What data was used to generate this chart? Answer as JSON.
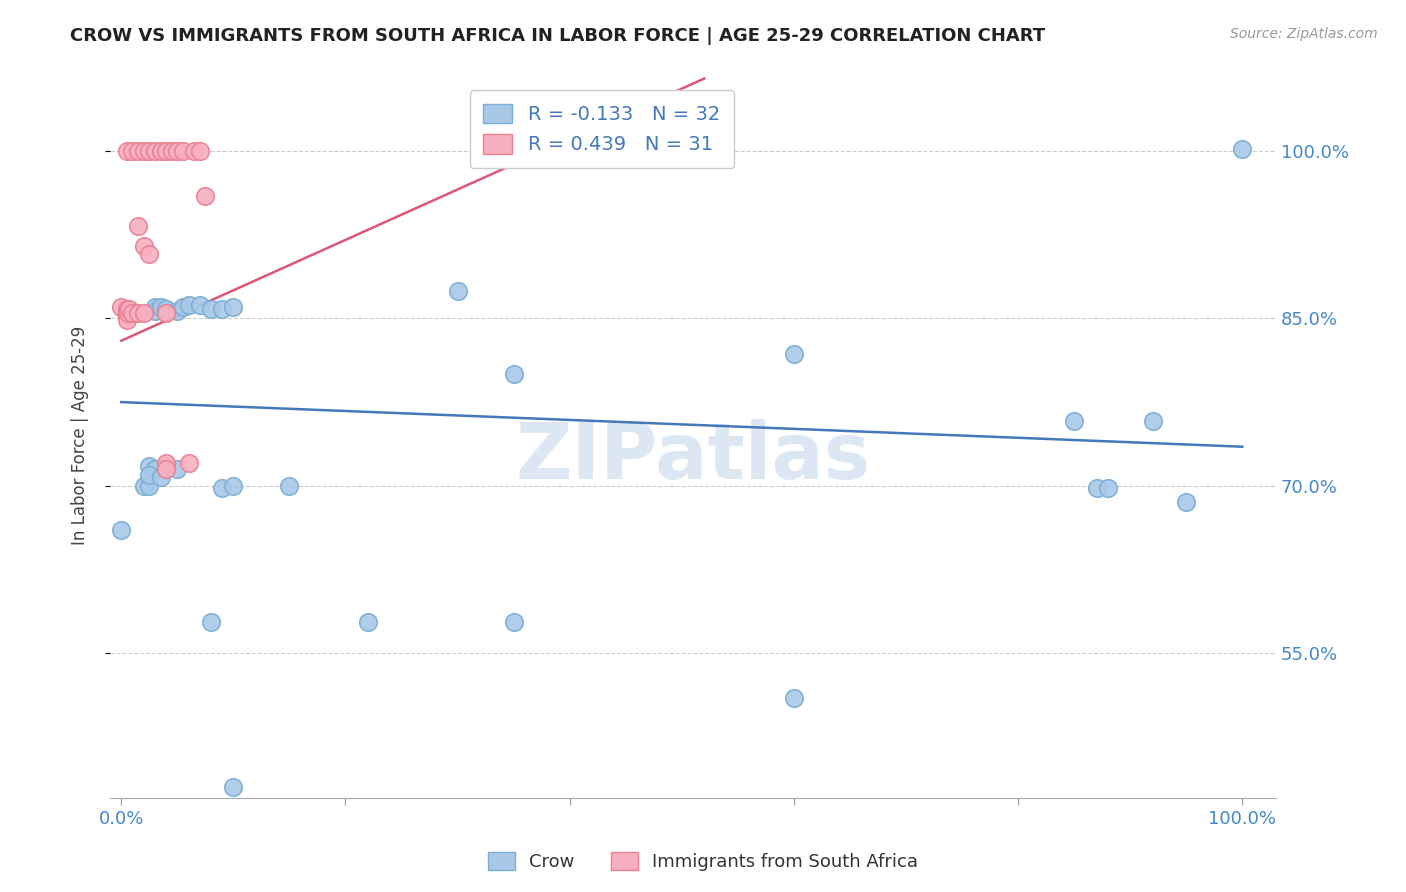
{
  "title": "CROW VS IMMIGRANTS FROM SOUTH AFRICA IN LABOR FORCE | AGE 25-29 CORRELATION CHART",
  "source": "Source: ZipAtlas.com",
  "ylabel": "In Labor Force | Age 25-29",
  "watermark": "ZIPatlas",
  "xlim": [
    -0.01,
    1.03
  ],
  "ylim": [
    0.42,
    1.07
  ],
  "xticks": [
    0.0,
    0.2,
    0.4,
    0.6,
    0.8,
    1.0
  ],
  "xticklabels": [
    "0.0%",
    "",
    "",
    "",
    "",
    "100.0%"
  ],
  "ytick_positions": [
    0.55,
    0.7,
    0.85,
    1.0
  ],
  "ytick_labels": [
    "55.0%",
    "70.0%",
    "85.0%",
    "100.0%"
  ],
  "crow_R": -0.133,
  "crow_N": 32,
  "imm_R": 0.439,
  "imm_N": 31,
  "crow_color": "#a8c8e8",
  "crow_edge_color": "#7aaed4",
  "imm_color": "#f8b0c0",
  "imm_edge_color": "#e88090",
  "crow_line_color": "#4477bb",
  "imm_line_color": "#dd5577",
  "crow_line": [
    0.0,
    0.775,
    1.0,
    0.735
  ],
  "imm_line": [
    0.0,
    0.83,
    0.52,
    1.065
  ],
  "crow_points": [
    [
      0.0,
      0.66
    ],
    [
      0.02,
      0.7
    ],
    [
      0.025,
      0.7
    ],
    [
      0.03,
      0.86
    ],
    [
      0.03,
      0.857
    ],
    [
      0.035,
      0.86
    ],
    [
      0.04,
      0.858
    ],
    [
      0.05,
      0.857
    ],
    [
      0.055,
      0.86
    ],
    [
      0.06,
      0.862
    ],
    [
      0.07,
      0.862
    ],
    [
      0.08,
      0.858
    ],
    [
      0.09,
      0.858
    ],
    [
      0.1,
      0.86
    ],
    [
      0.025,
      0.718
    ],
    [
      0.03,
      0.715
    ],
    [
      0.04,
      0.718
    ],
    [
      0.09,
      0.698
    ],
    [
      0.1,
      0.7
    ],
    [
      0.15,
      0.7
    ],
    [
      0.025,
      0.71
    ],
    [
      0.035,
      0.708
    ],
    [
      0.05,
      0.715
    ],
    [
      0.3,
      0.875
    ],
    [
      0.35,
      0.8
    ],
    [
      0.6,
      0.818
    ],
    [
      0.85,
      0.758
    ],
    [
      0.92,
      0.758
    ],
    [
      0.87,
      0.698
    ],
    [
      0.88,
      0.698
    ],
    [
      0.95,
      0.685
    ],
    [
      1.0,
      1.002
    ]
  ],
  "crow_points_lower": [
    [
      0.08,
      0.578
    ],
    [
      0.22,
      0.578
    ],
    [
      0.35,
      0.578
    ],
    [
      0.6,
      0.51
    ],
    [
      0.1,
      0.43
    ]
  ],
  "imm_points": [
    [
      0.005,
      1.0
    ],
    [
      0.01,
      1.0
    ],
    [
      0.015,
      1.0
    ],
    [
      0.02,
      1.0
    ],
    [
      0.025,
      1.0
    ],
    [
      0.03,
      1.0
    ],
    [
      0.035,
      1.0
    ],
    [
      0.04,
      1.0
    ],
    [
      0.045,
      1.0
    ],
    [
      0.05,
      1.0
    ],
    [
      0.055,
      1.0
    ],
    [
      0.065,
      1.0
    ],
    [
      0.07,
      1.0
    ],
    [
      0.075,
      0.96
    ],
    [
      0.015,
      0.933
    ],
    [
      0.02,
      0.915
    ],
    [
      0.025,
      0.908
    ],
    [
      0.04,
      0.855
    ],
    [
      0.0,
      0.86
    ],
    [
      0.005,
      0.858
    ],
    [
      0.005,
      0.855
    ],
    [
      0.005,
      0.852
    ],
    [
      0.005,
      0.849
    ],
    [
      0.006,
      0.855
    ],
    [
      0.007,
      0.858
    ],
    [
      0.01,
      0.855
    ],
    [
      0.015,
      0.855
    ],
    [
      0.02,
      0.855
    ],
    [
      0.04,
      0.72
    ],
    [
      0.04,
      0.715
    ],
    [
      0.06,
      0.72
    ]
  ]
}
